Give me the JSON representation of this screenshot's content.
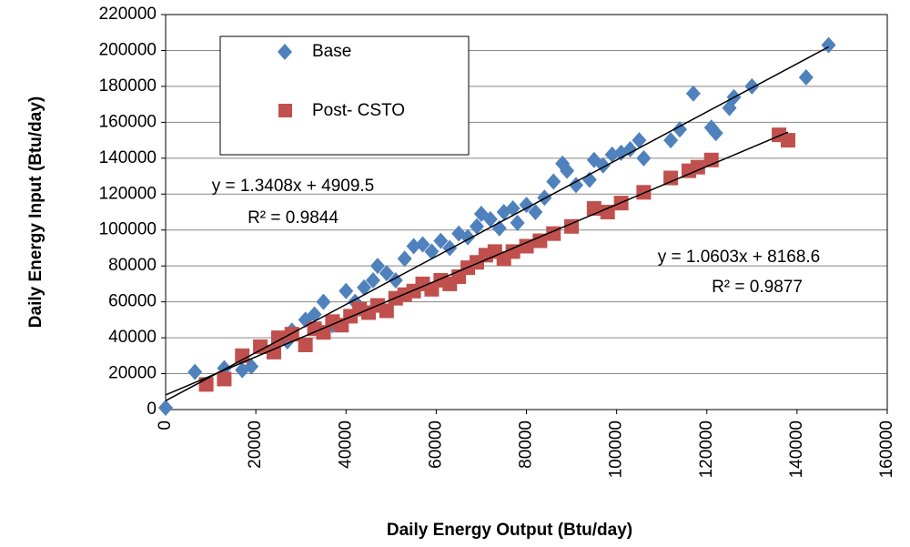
{
  "chart_data": {
    "type": "scatter",
    "xlabel": "Daily Energy Output (Btu/day)",
    "ylabel": "Daily Energy Input (Btu/day)",
    "xlim": [
      0,
      160000
    ],
    "xticks": [
      0,
      20000,
      40000,
      60000,
      80000,
      100000,
      120000,
      140000,
      160000
    ],
    "ylim": [
      0,
      220000
    ],
    "yticks": [
      0,
      20000,
      40000,
      60000,
      80000,
      100000,
      120000,
      140000,
      160000,
      180000,
      200000,
      220000
    ],
    "grid": true,
    "series": [
      {
        "name": "Base",
        "color": "#4f81bd",
        "marker": "diamond",
        "x": [
          0,
          6500,
          13000,
          17000,
          19000,
          24000,
          27000,
          28000,
          31000,
          33000,
          35000,
          37000,
          40000,
          42000,
          44000,
          46000,
          47000,
          49000,
          51000,
          53000,
          55000,
          57000,
          59000,
          61000,
          63000,
          65000,
          67000,
          69000,
          70000,
          72000,
          74000,
          75000,
          77000,
          78000,
          80000,
          82000,
          84000,
          86000,
          88000,
          89000,
          91000,
          94000,
          95000,
          97000,
          99000,
          101000,
          103000,
          105000,
          106000,
          112000,
          114000,
          117000,
          121000,
          122000,
          125000,
          126000,
          130000,
          142000,
          147000
        ],
        "values": [
          1000,
          21000,
          23000,
          22000,
          24000,
          33000,
          38000,
          44000,
          50000,
          53000,
          60000,
          47000,
          66000,
          60000,
          68000,
          72000,
          80000,
          76000,
          72000,
          84000,
          91000,
          92000,
          88000,
          94000,
          90000,
          98000,
          96000,
          102000,
          109000,
          106000,
          101000,
          110000,
          112000,
          104000,
          114000,
          110000,
          118000,
          127000,
          137000,
          133000,
          125000,
          128000,
          139000,
          136000,
          142000,
          143000,
          145000,
          150000,
          140000,
          150000,
          156000,
          176000,
          157000,
          154000,
          168000,
          174000,
          180000,
          185000,
          203000
        ],
        "trend": {
          "label": "y = 1.3408x + 4909.5",
          "r2_label": "R² = 0.9844",
          "slope": 1.3408,
          "intercept": 4909.5
        }
      },
      {
        "name": "Post- CSTO",
        "color": "#c0504d",
        "marker": "square",
        "x": [
          9000,
          13000,
          17000,
          21000,
          24000,
          25000,
          28000,
          31000,
          33000,
          35000,
          37000,
          39000,
          41000,
          43000,
          45000,
          47000,
          49000,
          51000,
          53000,
          55000,
          57000,
          59000,
          61000,
          63000,
          65000,
          67000,
          69000,
          71000,
          73000,
          75000,
          77000,
          80000,
          83000,
          86000,
          90000,
          95000,
          98000,
          101000,
          106000,
          112000,
          116000,
          118000,
          121000,
          136000,
          138000
        ],
        "values": [
          14000,
          17000,
          30000,
          35000,
          32000,
          40000,
          42000,
          36000,
          45000,
          43000,
          49000,
          47000,
          52000,
          56000,
          54000,
          58000,
          55000,
          62000,
          64000,
          66000,
          70000,
          67000,
          72000,
          70000,
          74000,
          79000,
          82000,
          86000,
          88000,
          84000,
          88000,
          91000,
          94000,
          98000,
          102000,
          112000,
          110000,
          115000,
          121000,
          129000,
          133000,
          135000,
          139000,
          153000,
          150000
        ],
        "trend": {
          "label": "y = 1.0603x + 8168.6",
          "r2_label": "R² = 0.9877",
          "slope": 1.0603,
          "intercept": 8168.6
        }
      }
    ]
  }
}
